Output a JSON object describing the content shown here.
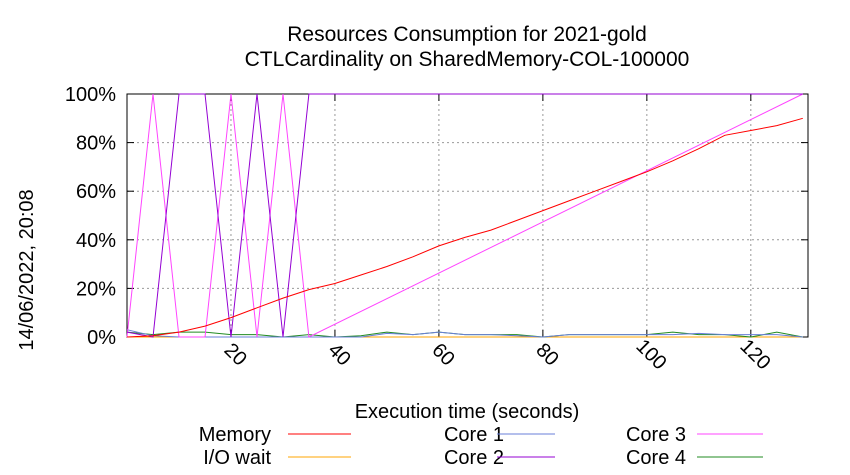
{
  "chart_data": {
    "type": "line",
    "title": "Resources Consumption for 2021-gold",
    "subtitle": "CTLCardinality on SharedMemory-COL-100000",
    "xlabel": "Execution time (seconds)",
    "ylabel": "",
    "side_label": "14/06/2022, 20:08",
    "xlim": [
      0,
      131
    ],
    "ylim": [
      0,
      100
    ],
    "x_ticks": [
      20,
      40,
      60,
      80,
      100,
      120
    ],
    "y_ticks": [
      0,
      20,
      40,
      60,
      80,
      100
    ],
    "y_tick_labels": [
      "0%",
      "20%",
      "40%",
      "60%",
      "80%",
      "100%"
    ],
    "grid": true,
    "legend_position": "bottom",
    "series": [
      {
        "name": "Memory",
        "color": "#ff0000",
        "x": [
          0,
          5,
          10,
          15,
          20,
          25,
          30,
          35,
          40,
          45,
          50,
          55,
          60,
          65,
          70,
          75,
          80,
          85,
          90,
          95,
          100,
          105,
          110,
          115,
          120,
          125,
          130
        ],
        "y": [
          0,
          0.5,
          2,
          4.5,
          8,
          12,
          16,
          19.5,
          22,
          25.5,
          29,
          33,
          37.5,
          41,
          44,
          48,
          52,
          56,
          60,
          64,
          68,
          72.5,
          77.5,
          83,
          85,
          87,
          90
        ]
      },
      {
        "name": "I/O wait",
        "color": "#ffa500",
        "x": [
          0,
          130
        ],
        "y": [
          0,
          0
        ]
      },
      {
        "name": "Core 1",
        "color": "#6a7fd8",
        "x": [
          0,
          5,
          10,
          15,
          20,
          25,
          30,
          35,
          40,
          45,
          50,
          55,
          60,
          65,
          70,
          75,
          80,
          85,
          90,
          95,
          100,
          105,
          110,
          115,
          120,
          125,
          130
        ],
        "y": [
          3,
          0.5,
          0,
          0,
          0,
          0,
          0,
          0,
          0,
          0,
          1.5,
          1,
          2,
          1,
          1,
          0.5,
          0,
          1,
          1,
          1,
          1,
          1,
          1.5,
          1,
          1,
          1,
          0
        ]
      },
      {
        "name": "Core 2",
        "color": "#9400d3",
        "x": [
          0,
          5,
          10,
          15,
          20,
          25,
          30,
          35,
          130
        ],
        "y": [
          2,
          0,
          100,
          100,
          0,
          100,
          0,
          100,
          100
        ]
      },
      {
        "name": "Core 3",
        "color": "#ff44ff",
        "x": [
          0,
          5,
          10,
          15,
          20,
          25,
          30,
          35,
          130
        ],
        "y": [
          0,
          100,
          0,
          0,
          100,
          0,
          100,
          0,
          100
        ]
      },
      {
        "name": "Core 4",
        "color": "#228b22",
        "x": [
          0,
          5,
          10,
          15,
          20,
          25,
          30,
          35,
          40,
          45,
          50,
          55,
          60,
          65,
          70,
          75,
          80,
          85,
          90,
          95,
          100,
          105,
          110,
          115,
          120,
          125,
          130
        ],
        "y": [
          2,
          1,
          2,
          2,
          1,
          1,
          0,
          1,
          0,
          0.5,
          2,
          1,
          2,
          1,
          1,
          1,
          0,
          1,
          1,
          1,
          1,
          2,
          1,
          1,
          0,
          2,
          0
        ]
      }
    ]
  }
}
